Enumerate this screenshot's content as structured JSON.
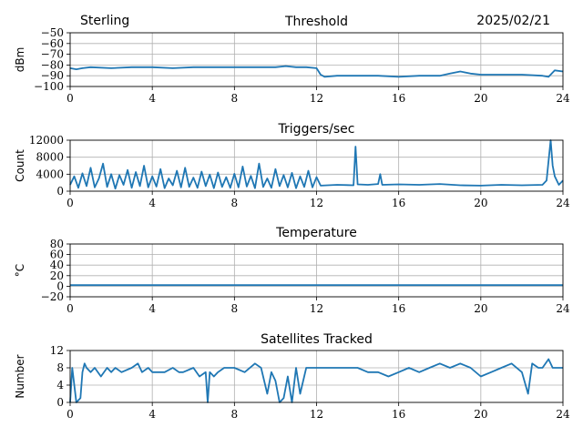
{
  "header": {
    "station": "Sterling",
    "date": "2025/02/21"
  },
  "colors": {
    "series": "#1f77b4",
    "grid": "#b0b0b0"
  },
  "chart_data": [
    {
      "type": "line",
      "title": "Threshold",
      "ylabel": "dBm",
      "xlim": [
        0,
        24
      ],
      "ylim": [
        -100,
        -50
      ],
      "xticks": [
        "0",
        "4",
        "8",
        "12",
        "16",
        "20",
        "24"
      ],
      "yticks": [
        "−100",
        "−90",
        "−80",
        "−70",
        "−60",
        "−50"
      ],
      "ytick_values": [
        -100,
        -90,
        -80,
        -70,
        -60,
        -50
      ],
      "grid": true,
      "x": [
        0,
        0.3,
        0.6,
        1,
        2,
        3,
        4,
        5,
        6,
        7,
        8,
        9,
        10,
        10.5,
        11,
        11.5,
        12,
        12.2,
        12.4,
        13,
        14,
        15,
        16,
        17,
        17.5,
        18,
        18.5,
        19,
        19.5,
        20,
        21,
        22,
        23,
        23.3,
        23.6,
        24
      ],
      "y": [
        -83,
        -84,
        -83,
        -82,
        -83,
        -82,
        -82,
        -83,
        -82,
        -82,
        -82,
        -82,
        -82,
        -81,
        -82,
        -82,
        -83,
        -89,
        -91,
        -90,
        -90,
        -90,
        -91,
        -90,
        -90,
        -90,
        -88,
        -86,
        -88,
        -89,
        -89,
        -89,
        -90,
        -91,
        -85,
        -86
      ]
    },
    {
      "type": "line",
      "title": "Triggers/sec",
      "ylabel": "Count",
      "xlim": [
        0,
        24
      ],
      "ylim": [
        0,
        12000
      ],
      "xticks": [
        "0",
        "4",
        "8",
        "12",
        "16",
        "20",
        "24"
      ],
      "yticks": [
        "0",
        "4000",
        "8000",
        "12000"
      ],
      "ytick_values": [
        0,
        4000,
        8000,
        12000
      ],
      "grid": true,
      "x": [
        0,
        0.2,
        0.4,
        0.6,
        0.8,
        1,
        1.2,
        1.4,
        1.6,
        1.8,
        2,
        2.2,
        2.4,
        2.6,
        2.8,
        3,
        3.2,
        3.4,
        3.6,
        3.8,
        4,
        4.2,
        4.4,
        4.6,
        4.8,
        5,
        5.2,
        5.4,
        5.6,
        5.8,
        6,
        6.2,
        6.4,
        6.6,
        6.8,
        7,
        7.2,
        7.4,
        7.6,
        7.8,
        8,
        8.2,
        8.4,
        8.6,
        8.8,
        9,
        9.2,
        9.4,
        9.6,
        9.8,
        10,
        10.2,
        10.4,
        10.6,
        10.8,
        11,
        11.2,
        11.4,
        11.6,
        11.8,
        12,
        12.2,
        13,
        13.8,
        13.9,
        14,
        14.5,
        15,
        15.1,
        15.2,
        16,
        17,
        18,
        19,
        20,
        21,
        22,
        23,
        23.2,
        23.4,
        23.5,
        23.6,
        23.8,
        24
      ],
      "y": [
        1500,
        3500,
        800,
        4200,
        1200,
        5500,
        900,
        3000,
        6500,
        1000,
        4000,
        600,
        3800,
        1500,
        5000,
        800,
        4500,
        1200,
        6000,
        900,
        3500,
        1100,
        5200,
        700,
        3000,
        1400,
        4800,
        900,
        5500,
        1000,
        3200,
        800,
        4600,
        1200,
        3900,
        700,
        4400,
        1000,
        3300,
        800,
        4100,
        900,
        5800,
        1100,
        3600,
        700,
        6500,
        1000,
        3000,
        800,
        5200,
        1200,
        3800,
        900,
        4300,
        700,
        3500,
        1000,
        4800,
        900,
        3300,
        1300,
        1500,
        1400,
        10500,
        1600,
        1500,
        1700,
        4000,
        1500,
        1600,
        1500,
        1700,
        1400,
        1300,
        1500,
        1400,
        1500,
        2500,
        12000,
        6000,
        3500,
        1500,
        2500
      ]
    },
    {
      "type": "line",
      "title": "Temperature",
      "ylabel": "°C",
      "xlim": [
        0,
        24
      ],
      "ylim": [
        -20,
        80
      ],
      "xticks": [
        "0",
        "4",
        "8",
        "12",
        "16",
        "20",
        "24"
      ],
      "yticks": [
        "−20",
        "0",
        "20",
        "40",
        "60",
        "80"
      ],
      "ytick_values": [
        -20,
        0,
        20,
        40,
        60,
        80
      ],
      "grid": true,
      "x": [
        0,
        24
      ],
      "y": [
        2,
        2
      ]
    },
    {
      "type": "line",
      "title": "Satellites Tracked",
      "ylabel": "Number",
      "xlim": [
        0,
        24
      ],
      "ylim": [
        0,
        12
      ],
      "xticks": [
        "0",
        "4",
        "8",
        "12",
        "16",
        "20",
        "24"
      ],
      "yticks": [
        "0",
        "4",
        "8",
        "12"
      ],
      "ytick_values": [
        0,
        4,
        8,
        12
      ],
      "grid": true,
      "x": [
        0,
        0.1,
        0.3,
        0.5,
        0.6,
        0.7,
        0.8,
        1.0,
        1.2,
        1.5,
        1.8,
        2.0,
        2.2,
        2.5,
        3.0,
        3.3,
        3.5,
        3.8,
        4.0,
        4.3,
        4.6,
        5.0,
        5.3,
        5.5,
        6.0,
        6.3,
        6.6,
        6.7,
        6.8,
        7.0,
        7.2,
        7.5,
        8.0,
        8.5,
        9.0,
        9.3,
        9.6,
        9.8,
        10.0,
        10.2,
        10.4,
        10.6,
        10.8,
        11.0,
        11.2,
        11.5,
        12,
        13,
        14,
        14.5,
        15,
        15.5,
        16,
        16.5,
        17,
        17.5,
        18,
        18.5,
        19,
        19.5,
        20,
        20.5,
        21,
        21.5,
        22,
        22.3,
        22.5,
        22.8,
        23,
        23.3,
        23.5,
        24
      ],
      "y": [
        0,
        8,
        0,
        1,
        7,
        9,
        8,
        7,
        8,
        6,
        8,
        7,
        8,
        7,
        8,
        9,
        7,
        8,
        7,
        7,
        7,
        8,
        7,
        7,
        8,
        6,
        7,
        0,
        7,
        6,
        7,
        8,
        8,
        7,
        9,
        8,
        2,
        7,
        5,
        0,
        1,
        6,
        0,
        8,
        2,
        8,
        8,
        8,
        8,
        7,
        7,
        6,
        7,
        8,
        7,
        8,
        9,
        8,
        9,
        8,
        6,
        7,
        8,
        9,
        7,
        2,
        9,
        8,
        8,
        10,
        8,
        8
      ]
    }
  ]
}
